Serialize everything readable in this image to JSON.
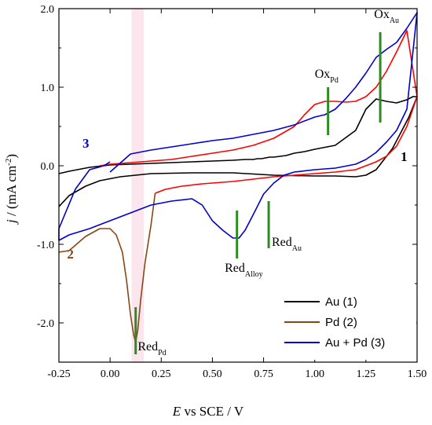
{
  "chart_data": {
    "type": "line",
    "title": "",
    "xlabel": {
      "main": "E",
      "rest": " vs SCE / V"
    },
    "ylabel": {
      "main": "j",
      "rest": " / (mA cm",
      "sup": "-2",
      "end": ")"
    },
    "xlim": [
      -0.25,
      1.5
    ],
    "ylim": [
      -2.5,
      2.0
    ],
    "x_ticks": [
      -0.25,
      0.0,
      0.25,
      0.5,
      0.75,
      1.0,
      1.25,
      1.5
    ],
    "x_tick_labels": [
      "-0.25",
      "0.00",
      "0.25",
      "0.50",
      "0.75",
      "1.00",
      "1.25",
      "1.50"
    ],
    "y_ticks": [
      2.0,
      1.0,
      0.0,
      -1.0,
      -2.0
    ],
    "y_tick_labels": [
      "2.0",
      "1.0",
      "0.0",
      "-1.0",
      "-2.0"
    ],
    "legend_position": "bottom-right",
    "series": [
      {
        "name": "Au (1)",
        "color": "#000000",
        "x": [
          -0.25,
          -0.2,
          -0.12,
          -0.05,
          0.05,
          0.2,
          0.4,
          0.6,
          0.8,
          1.0,
          1.1,
          1.2,
          1.25,
          1.3,
          1.33,
          1.38,
          1.42,
          1.46,
          1.5,
          1.48,
          1.45,
          1.4,
          1.35,
          1.3,
          1.25,
          1.2,
          1.1,
          1.0,
          0.95,
          0.9,
          0.86,
          0.83,
          0.8,
          0.78,
          0.76,
          0.74,
          0.72,
          0.7,
          0.66,
          0.6,
          0.5,
          0.4,
          0.3,
          0.2,
          0.1,
          0.0,
          -0.1,
          -0.2,
          -0.25
        ],
        "y": [
          -0.52,
          -0.38,
          -0.26,
          -0.19,
          -0.14,
          -0.1,
          -0.09,
          -0.09,
          -0.12,
          -0.13,
          -0.13,
          -0.14,
          -0.12,
          -0.05,
          0.05,
          0.22,
          0.42,
          0.62,
          0.88,
          0.88,
          0.84,
          0.8,
          0.82,
          0.85,
          0.72,
          0.45,
          0.26,
          0.21,
          0.18,
          0.16,
          0.13,
          0.12,
          0.11,
          0.11,
          0.1,
          0.09,
          0.09,
          0.08,
          0.08,
          0.07,
          0.06,
          0.05,
          0.04,
          0.03,
          0.02,
          0.01,
          -0.02,
          -0.07,
          -0.1
        ]
      },
      {
        "name": "Pd (2)",
        "color": "#8b4513",
        "x": [
          -0.25,
          -0.2,
          -0.12,
          -0.05,
          0.0,
          0.03,
          0.06,
          0.08,
          0.1,
          0.115,
          0.125,
          0.135,
          0.15,
          0.17,
          0.2,
          0.22
        ],
        "y": [
          -1.1,
          -1.08,
          -0.9,
          -0.8,
          -0.8,
          -0.88,
          -1.1,
          -1.45,
          -1.9,
          -2.15,
          -2.25,
          -2.1,
          -1.7,
          -1.25,
          -0.75,
          -0.35
        ]
      },
      {
        "name": "Pd red",
        "legend": false,
        "color": "#ff0000",
        "x": [
          0.22,
          0.27,
          0.35,
          0.45,
          0.6,
          0.7,
          0.8,
          0.9,
          1.0,
          1.1,
          1.2,
          1.3,
          1.35,
          1.4,
          1.45,
          1.5,
          1.45,
          1.4,
          1.35,
          1.3,
          1.25,
          1.2,
          1.15,
          1.1,
          1.05,
          1.0,
          0.95,
          0.9,
          0.8,
          0.7,
          0.6,
          0.5,
          0.4,
          0.3,
          0.2,
          0.1,
          0.05,
          0.0,
          -0.05
        ],
        "y": [
          -0.35,
          -0.3,
          -0.26,
          -0.23,
          -0.2,
          -0.17,
          -0.14,
          -0.12,
          -0.1,
          -0.08,
          -0.05,
          0.05,
          0.12,
          0.25,
          0.5,
          0.88,
          1.72,
          1.45,
          1.2,
          1.0,
          0.88,
          0.82,
          0.81,
          0.82,
          0.82,
          0.78,
          0.65,
          0.5,
          0.35,
          0.26,
          0.2,
          0.16,
          0.12,
          0.08,
          0.06,
          0.04,
          0.03,
          0.02,
          0.0
        ]
      },
      {
        "name": "Au + Pd (3)",
        "color": "#0000cd",
        "x": [
          0.0,
          -0.03,
          -0.1,
          -0.17,
          -0.25,
          -0.25,
          -0.2,
          -0.1,
          0.0,
          0.1,
          0.2,
          0.3,
          0.4,
          0.45,
          0.5,
          0.55,
          0.6,
          0.63,
          0.66,
          0.7,
          0.75,
          0.8,
          0.85,
          0.9,
          1.0,
          1.1,
          1.2,
          1.25,
          1.3,
          1.35,
          1.4,
          1.45,
          1.5,
          1.45,
          1.4,
          1.35,
          1.3,
          1.25,
          1.2,
          1.15,
          1.1,
          1.05,
          1.0,
          0.9,
          0.8,
          0.7,
          0.6,
          0.5,
          0.4,
          0.3,
          0.2,
          0.1,
          0.0
        ],
        "y": [
          0.05,
          0.0,
          -0.05,
          -0.3,
          -0.8,
          -0.95,
          -0.88,
          -0.8,
          -0.7,
          -0.6,
          -0.5,
          -0.45,
          -0.42,
          -0.5,
          -0.7,
          -0.82,
          -0.92,
          -0.92,
          -0.82,
          -0.62,
          -0.36,
          -0.22,
          -0.12,
          -0.08,
          -0.05,
          -0.03,
          0.02,
          0.08,
          0.17,
          0.3,
          0.45,
          0.72,
          1.95,
          1.75,
          1.57,
          1.48,
          1.38,
          1.18,
          1.0,
          0.85,
          0.72,
          0.65,
          0.62,
          0.52,
          0.45,
          0.4,
          0.35,
          0.32,
          0.28,
          0.24,
          0.2,
          0.15,
          -0.08
        ]
      }
    ],
    "annotations": [
      {
        "text": "Ox",
        "sub": "Au",
        "x": 1.29,
        "y": 1.88,
        "color": "#000000"
      },
      {
        "text": "Ox",
        "sub": "Pd",
        "x": 1.0,
        "y": 1.12,
        "color": "#000000"
      },
      {
        "text": "Red",
        "sub": "Au",
        "x": 0.79,
        "y": -1.02,
        "color": "#000000"
      },
      {
        "text": "Red",
        "sub": "Alloy",
        "x": 0.56,
        "y": -1.35,
        "color": "#000000"
      },
      {
        "text": "Red",
        "sub": "Pd",
        "x": 0.135,
        "y": -2.35,
        "color": "#000000"
      },
      {
        "text": "1",
        "x": 1.42,
        "y": 0.06,
        "color": "#000000",
        "bold": true
      },
      {
        "text": "2",
        "x": -0.21,
        "y": -1.18,
        "color": "#8b4513",
        "bold": true
      },
      {
        "text": "3",
        "x": -0.135,
        "y": 0.23,
        "color": "#0000cd",
        "bold": true
      }
    ],
    "markers": [
      {
        "x": 1.32,
        "y0": 0.55,
        "y1": 1.7
      },
      {
        "x": 1.065,
        "y0": 0.39,
        "y1": 1.0
      },
      {
        "x": 0.775,
        "y0": -0.45,
        "y1": -1.05
      },
      {
        "x": 0.62,
        "y0": -0.57,
        "y1": -1.18
      },
      {
        "x": 0.125,
        "y0": -1.8,
        "y1": -2.4
      }
    ],
    "marker_color": "#2e8b22",
    "shaded_band": {
      "x0": 0.105,
      "x1": 0.165,
      "color": "#fbe6ee"
    }
  }
}
